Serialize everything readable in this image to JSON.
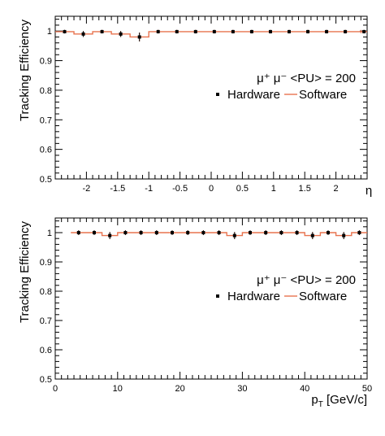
{
  "colors": {
    "hardware": "#000000",
    "software": "#e8734f",
    "axes": "#000000",
    "background": "#ffffff"
  },
  "chart_data": [
    {
      "type": "scatter",
      "xlabel": "η",
      "ylabel": "Tracking Efficiency",
      "xlim": [
        -2.5,
        2.5
      ],
      "ylim": [
        0.5,
        1.05
      ],
      "x_ticks": [
        "-2",
        "-1.5",
        "-1",
        "-0.5",
        "0",
        "0.5",
        "1",
        "1.5",
        "2"
      ],
      "y_ticks": [
        "0.5",
        "0.6",
        "0.7",
        "0.8",
        "0.9",
        "1"
      ],
      "grid": false,
      "legend": {
        "position": "right",
        "title": "μ⁺ μ⁻ <PU> = 200",
        "entries": [
          "Hardware",
          "Software"
        ]
      },
      "series": [
        {
          "name": "Hardware",
          "style": "markers",
          "x": [
            -2.35,
            -2.05,
            -1.75,
            -1.45,
            -1.15,
            -0.85,
            -0.55,
            -0.25,
            0.05,
            0.35,
            0.65,
            0.95,
            1.25,
            1.55,
            1.85,
            2.15,
            2.45
          ],
          "values": [
            0.998,
            0.99,
            0.998,
            0.99,
            0.98,
            0.998,
            0.998,
            0.998,
            0.998,
            0.998,
            0.998,
            0.998,
            0.998,
            0.998,
            0.998,
            0.998,
            0.998
          ],
          "errors": [
            0.006,
            0.01,
            0.006,
            0.01,
            0.015,
            0.006,
            0.006,
            0.006,
            0.006,
            0.006,
            0.006,
            0.006,
            0.006,
            0.006,
            0.006,
            0.006,
            0.006
          ]
        },
        {
          "name": "Software",
          "style": "histogram",
          "bin_edges": [
            -2.5,
            -2.2,
            -1.9,
            -1.6,
            -1.3,
            -1.0,
            -0.7,
            -0.4,
            -0.1,
            0.2,
            0.5,
            0.8,
            1.1,
            1.4,
            1.7,
            2.0,
            2.3,
            2.5
          ],
          "values": [
            0.998,
            0.99,
            0.998,
            0.99,
            0.98,
            0.998,
            0.998,
            0.998,
            0.998,
            0.998,
            0.998,
            0.998,
            0.998,
            0.998,
            0.998,
            0.998,
            0.998
          ]
        }
      ]
    },
    {
      "type": "scatter",
      "xlabel": "p_T [GeV/c]",
      "ylabel": "Tracking Efficiency",
      "xlim": [
        0,
        50
      ],
      "ylim": [
        0.5,
        1.05
      ],
      "x_ticks": [
        "0",
        "10",
        "20",
        "30",
        "40",
        "50"
      ],
      "y_ticks": [
        "0.5",
        "0.6",
        "0.7",
        "0.8",
        "0.9",
        "1"
      ],
      "grid": false,
      "legend": {
        "position": "right",
        "title": "μ⁺ μ⁻ <PU> = 200",
        "entries": [
          "Hardware",
          "Software"
        ]
      },
      "series": [
        {
          "name": "Hardware",
          "style": "markers",
          "x": [
            3.75,
            6.25,
            8.75,
            11.25,
            13.75,
            16.25,
            18.75,
            21.25,
            23.75,
            26.25,
            28.75,
            31.25,
            33.75,
            36.25,
            38.75,
            41.25,
            43.75,
            46.25,
            48.75
          ],
          "values": [
            1.0,
            1.0,
            0.99,
            1.0,
            1.0,
            1.0,
            1.0,
            1.0,
            1.0,
            1.0,
            0.99,
            1.0,
            1.0,
            1.0,
            1.0,
            0.99,
            1.0,
            0.99,
            1.0
          ],
          "errors": [
            0.008,
            0.008,
            0.012,
            0.008,
            0.008,
            0.008,
            0.008,
            0.008,
            0.008,
            0.008,
            0.012,
            0.008,
            0.008,
            0.008,
            0.008,
            0.012,
            0.008,
            0.012,
            0.008
          ]
        },
        {
          "name": "Software",
          "style": "histogram",
          "bin_edges": [
            2.5,
            5,
            7.5,
            10,
            12.5,
            15,
            17.5,
            20,
            22.5,
            25,
            27.5,
            30,
            32.5,
            35,
            37.5,
            40,
            42.5,
            45,
            47.5,
            50
          ],
          "values": [
            1.0,
            1.0,
            0.99,
            1.0,
            1.0,
            1.0,
            1.0,
            1.0,
            1.0,
            1.0,
            0.99,
            1.0,
            1.0,
            1.0,
            1.0,
            0.99,
            1.0,
            0.99,
            1.0
          ]
        }
      ]
    }
  ]
}
